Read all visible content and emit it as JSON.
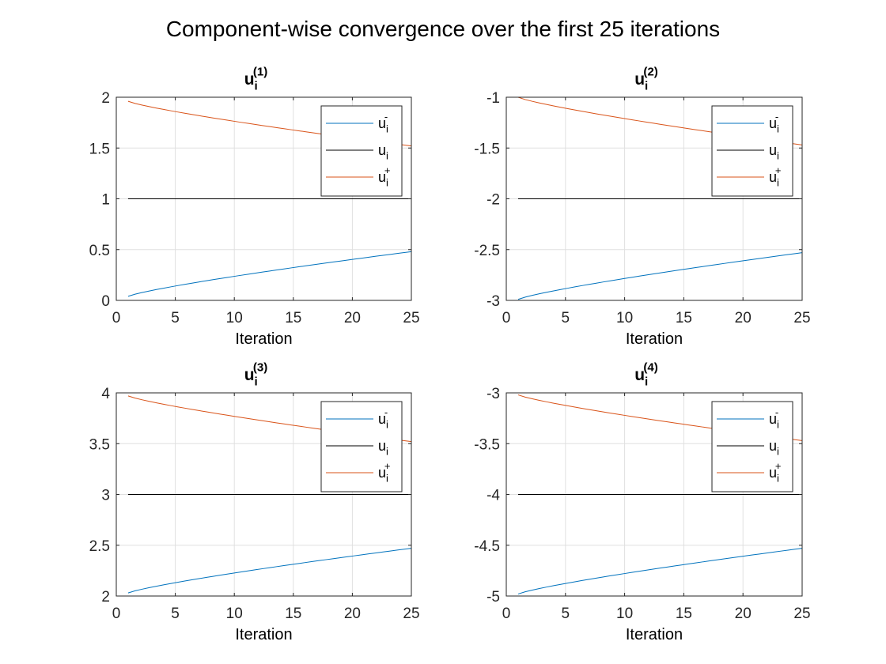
{
  "figure_title": "Component-wise convergence over the first 25 iterations",
  "colors": {
    "lower": "#0072BD",
    "exact": "#000000",
    "upper": "#D95319",
    "grid": "#e0e0e0",
    "axis": "#262626"
  },
  "chart_data": [
    {
      "type": "line",
      "title": {
        "base": "u",
        "sub": "i",
        "sup": "(1)"
      },
      "xlabel": "Iteration",
      "xlim": [
        0,
        25
      ],
      "ylim": [
        0,
        2
      ],
      "xticks": [
        0,
        5,
        10,
        15,
        20,
        25
      ],
      "yticks": [
        0,
        0.5,
        1,
        1.5,
        2
      ],
      "ytick_labels": [
        "0",
        "0.5",
        "1",
        "1.5",
        "2"
      ],
      "grid": true,
      "legend_position": "top-right",
      "x": [
        1,
        25
      ],
      "series": [
        {
          "name": {
            "base": "u",
            "sub": "i",
            "sup": "-"
          },
          "role": "lower",
          "start": 0.04,
          "end": 0.48
        },
        {
          "name": {
            "base": "u",
            "sub": "i",
            "sup": ""
          },
          "role": "exact",
          "start": 1.0,
          "end": 1.0
        },
        {
          "name": {
            "base": "u",
            "sub": "i",
            "sup": "+"
          },
          "role": "upper",
          "start": 1.96,
          "end": 1.52
        }
      ]
    },
    {
      "type": "line",
      "title": {
        "base": "u",
        "sub": "i",
        "sup": "(2)"
      },
      "xlabel": "Iteration",
      "xlim": [
        0,
        25
      ],
      "ylim": [
        -3,
        -1
      ],
      "xticks": [
        0,
        5,
        10,
        15,
        20,
        25
      ],
      "yticks": [
        -3,
        -2.5,
        -2,
        -1.5,
        -1
      ],
      "ytick_labels": [
        "-3",
        "-2.5",
        "-2",
        "-1.5",
        "-1"
      ],
      "grid": true,
      "legend_position": "top-right",
      "x": [
        1,
        25
      ],
      "series": [
        {
          "name": {
            "base": "u",
            "sub": "i",
            "sup": "-"
          },
          "role": "lower",
          "start": -2.99,
          "end": -2.53
        },
        {
          "name": {
            "base": "u",
            "sub": "i",
            "sup": ""
          },
          "role": "exact",
          "start": -2.0,
          "end": -2.0
        },
        {
          "name": {
            "base": "u",
            "sub": "i",
            "sup": "+"
          },
          "role": "upper",
          "start": -1.0,
          "end": -1.47
        }
      ]
    },
    {
      "type": "line",
      "title": {
        "base": "u",
        "sub": "i",
        "sup": "(3)"
      },
      "xlabel": "Iteration",
      "xlim": [
        0,
        25
      ],
      "ylim": [
        2,
        4
      ],
      "xticks": [
        0,
        5,
        10,
        15,
        20,
        25
      ],
      "yticks": [
        2,
        2.5,
        3,
        3.5,
        4
      ],
      "ytick_labels": [
        "2",
        "2.5",
        "3",
        "3.5",
        "4"
      ],
      "grid": true,
      "legend_position": "top-right",
      "x": [
        1,
        25
      ],
      "series": [
        {
          "name": {
            "base": "u",
            "sub": "i",
            "sup": "-"
          },
          "role": "lower",
          "start": 2.03,
          "end": 2.47
        },
        {
          "name": {
            "base": "u",
            "sub": "i",
            "sup": ""
          },
          "role": "exact",
          "start": 3.0,
          "end": 3.0
        },
        {
          "name": {
            "base": "u",
            "sub": "i",
            "sup": "+"
          },
          "role": "upper",
          "start": 3.97,
          "end": 3.52
        }
      ]
    },
    {
      "type": "line",
      "title": {
        "base": "u",
        "sub": "i",
        "sup": "(4)"
      },
      "xlabel": "Iteration",
      "xlim": [
        0,
        25
      ],
      "ylim": [
        -5,
        -3
      ],
      "xticks": [
        0,
        5,
        10,
        15,
        20,
        25
      ],
      "yticks": [
        -5,
        -4.5,
        -4,
        -3.5,
        -3
      ],
      "ytick_labels": [
        "-5",
        "-4.5",
        "-4",
        "-3.5",
        "-3"
      ],
      "grid": true,
      "legend_position": "top-right",
      "x": [
        1,
        25
      ],
      "series": [
        {
          "name": {
            "base": "u",
            "sub": "i",
            "sup": "-"
          },
          "role": "lower",
          "start": -4.98,
          "end": -4.53
        },
        {
          "name": {
            "base": "u",
            "sub": "i",
            "sup": ""
          },
          "role": "exact",
          "start": -4.0,
          "end": -4.0
        },
        {
          "name": {
            "base": "u",
            "sub": "i",
            "sup": "+"
          },
          "role": "upper",
          "start": -3.02,
          "end": -3.47
        }
      ]
    }
  ]
}
